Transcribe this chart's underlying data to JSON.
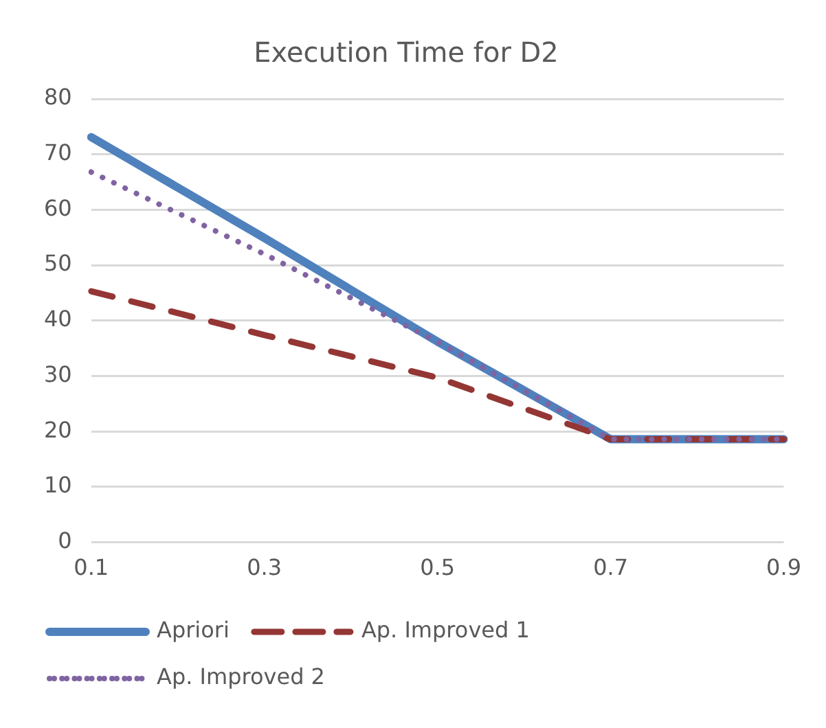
{
  "chart_data": {
    "type": "line",
    "title": "Execution Time for D2",
    "categories": [
      "0.1",
      "0.3",
      "0.5",
      "0.7",
      "0.9"
    ],
    "series": [
      {
        "name": "Apriori",
        "color": "#4f81bd",
        "line_style": "solid",
        "values": [
          73.1,
          54.9,
          36.2,
          18.6,
          18.6
        ]
      },
      {
        "name": "Ap. Improved 1",
        "color": "#943634",
        "line_style": "dashed",
        "values": [
          45.3,
          37.4,
          29.7,
          18.6,
          18.6
        ]
      },
      {
        "name": "Ap. Improved 2",
        "color": "#8064a2",
        "line_style": "dotted",
        "values": [
          66.8,
          52,
          36.2,
          18.6,
          18.6
        ]
      }
    ],
    "ylim": [
      0,
      80
    ],
    "yticks": [
      0,
      10,
      20,
      30,
      40,
      50,
      60,
      70,
      80
    ],
    "grid": "y",
    "legend": "bottom",
    "marker": "none"
  }
}
